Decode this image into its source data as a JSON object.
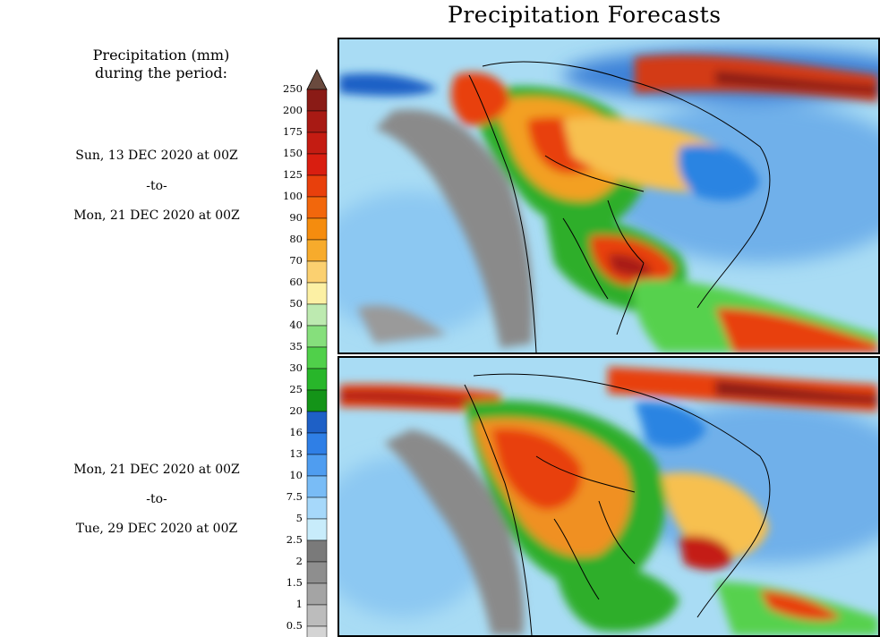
{
  "title": "Precipitation Forecasts",
  "legend": {
    "heading_line1": "Precipitation (mm)",
    "heading_line2": "during the period:",
    "ticks": [
      "250",
      "200",
      "175",
      "150",
      "125",
      "100",
      "90",
      "80",
      "70",
      "60",
      "50",
      "40",
      "35",
      "30",
      "25",
      "20",
      "16",
      "13",
      "10",
      "7.5",
      "5",
      "2.5",
      "2",
      "1.5",
      "1",
      "0.5"
    ],
    "colors": [
      "#8a1b16",
      "#a81a14",
      "#c41c12",
      "#d91e10",
      "#e8400c",
      "#f2670c",
      "#f58c0e",
      "#f7ab2c",
      "#fbd070",
      "#fcf0a4",
      "#bdeab0",
      "#86df7c",
      "#50d04a",
      "#28b62a",
      "#149418",
      "#1e60c6",
      "#2f7fe6",
      "#4f9df0",
      "#79bcf6",
      "#a6d8fa",
      "#c8ecfb",
      "#7a7a7a",
      "#8e8e8e",
      "#a4a4a4",
      "#bcbcbc",
      "#d4d4d4"
    ],
    "top_color": "#6a4a3e"
  },
  "periods": [
    {
      "start": "Sun, 13 DEC 2020 at 00Z",
      "separator": "-to-",
      "end": "Mon, 21 DEC 2020 at 00Z"
    },
    {
      "start": "Mon, 21 DEC 2020 at 00Z",
      "separator": "-to-",
      "end": "Tue, 29 DEC 2020 at 00Z"
    }
  ]
}
